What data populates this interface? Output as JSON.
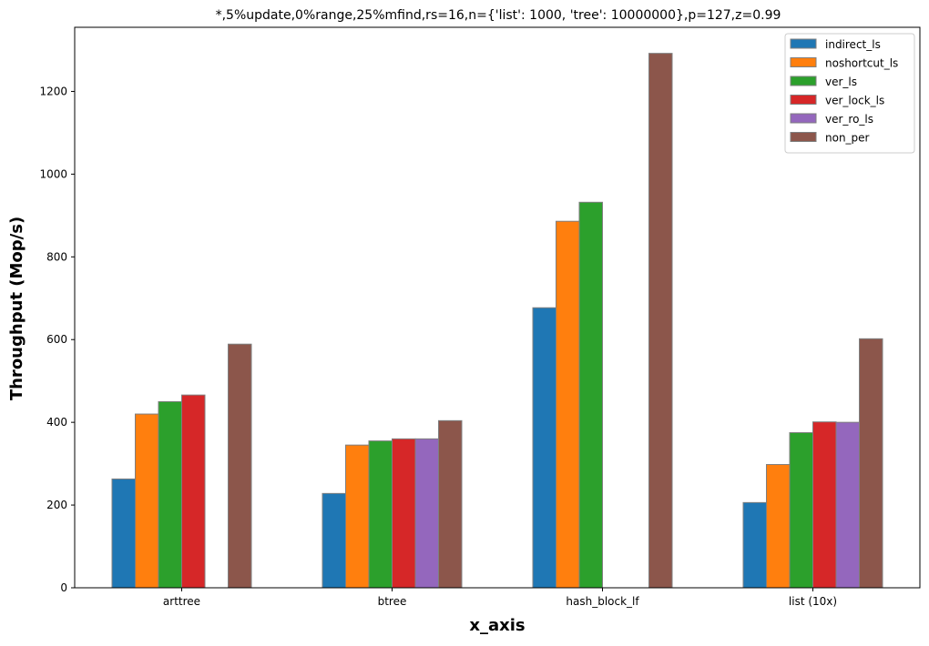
{
  "chart_data": {
    "type": "bar",
    "title": "*,5%update,0%range,25%mfind,rs=16,n={'list': 1000, 'tree': 10000000},p=127,z=0.99",
    "xlabel": "x_axis",
    "ylabel": "Throughput (Mop/s)",
    "categories": [
      "arttree",
      "btree",
      "hash_block_lf",
      "list (10x)"
    ],
    "ylim": [
      0,
      1355
    ],
    "yticks": [
      0,
      200,
      400,
      600,
      800,
      1000,
      1200
    ],
    "legend_position": "top-right",
    "grid": false,
    "series": [
      {
        "name": "indirect_ls",
        "color": "#1f77b4",
        "values": [
          263,
          228,
          677,
          206
        ]
      },
      {
        "name": "noshortcut_ls",
        "color": "#ff7f0e",
        "values": [
          420,
          345,
          886,
          298
        ]
      },
      {
        "name": "ver_ls",
        "color": "#2ca02c",
        "values": [
          450,
          355,
          932,
          375
        ]
      },
      {
        "name": "ver_lock_ls",
        "color": "#d62728",
        "values": [
          466,
          360,
          null,
          401
        ]
      },
      {
        "name": "ver_ro_ls",
        "color": "#9467bd",
        "values": [
          null,
          360,
          null,
          400
        ]
      },
      {
        "name": "non_per",
        "color": "#8c564b",
        "values": [
          589,
          404,
          1292,
          602
        ]
      }
    ]
  }
}
